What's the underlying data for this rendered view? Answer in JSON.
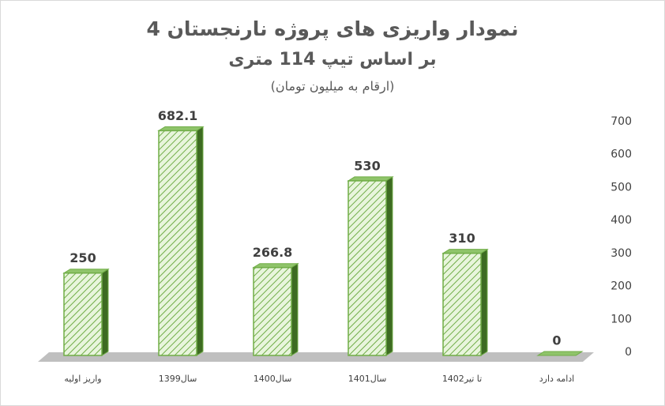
{
  "chart_data": {
    "type": "bar3d",
    "title": "نمودار واریزی های پروژه نارنجستان 4",
    "subtitle": "بر اساس تیپ 114 متری",
    "note": "(ارقام به میلیون تومان)",
    "categories": [
      "واریز اولیه",
      "سال1399",
      "سال1400",
      "سال1401",
      "تا تیر1402",
      "ادامه دارد"
    ],
    "values": [
      250,
      682.1,
      266.8,
      530,
      310,
      0
    ],
    "color": "#70ad47",
    "ylim": [
      0,
      700
    ],
    "yticks": [
      0,
      100,
      200,
      300,
      400,
      500,
      600,
      700
    ],
    "grid": false,
    "y_axis_side": "right"
  }
}
